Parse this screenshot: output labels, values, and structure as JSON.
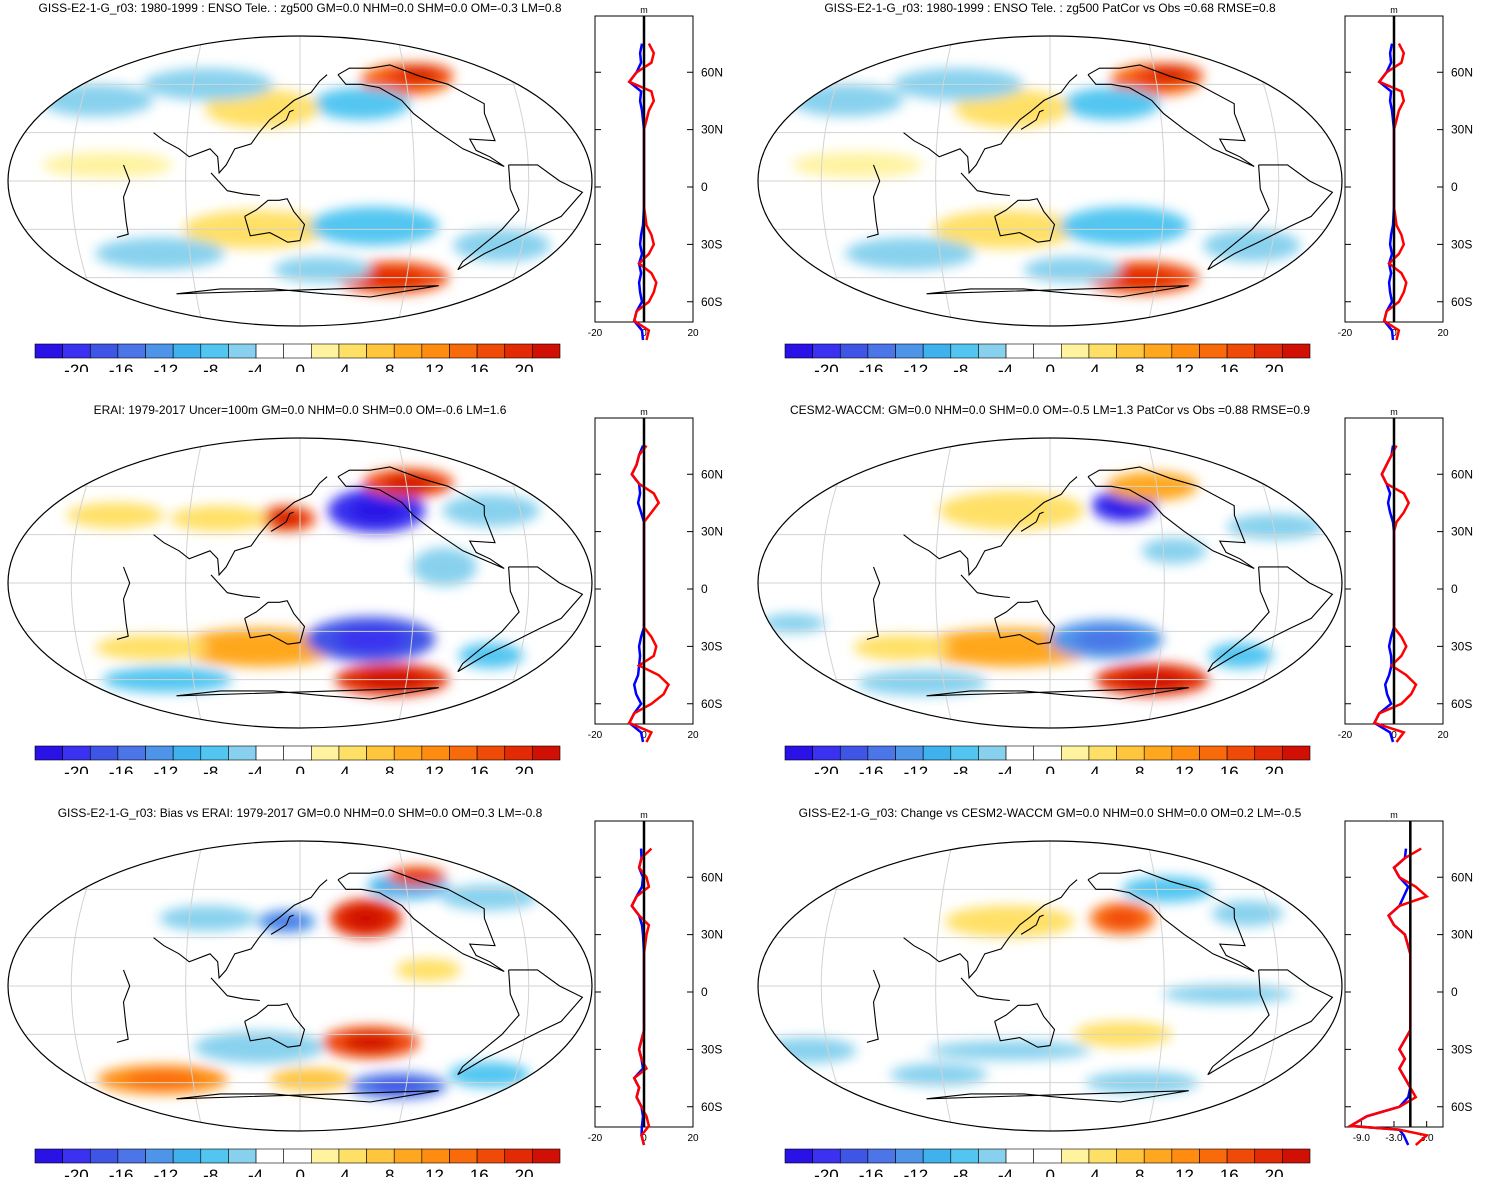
{
  "colors": {
    "scale": [
      "#2a12e6",
      "#3a32f0",
      "#3f55e6",
      "#4c76e8",
      "#4e95ea",
      "#3fb2ee",
      "#52c6f1",
      "#88d1ee",
      "#ffffff",
      "#ffffff",
      "#fff3a0",
      "#ffe066",
      "#ffc53d",
      "#ffa71f",
      "#ff8c10",
      "#f96a0a",
      "#f04a08",
      "#e22a05",
      "#d00f05"
    ],
    "line_positive": "#ff0000",
    "line_negative": "#0000ff",
    "line_mean": "#000000",
    "coast": "#000000",
    "grid": "#d3d3d3"
  },
  "colorbar_ticks": [
    "-20",
    "-16",
    "-12",
    "-8",
    "-4",
    "0",
    "4",
    "8",
    "12",
    "16",
    "20"
  ],
  "profile_unit": "m",
  "profile_lat_ticks": [
    "60N",
    "30N",
    "0",
    "30S",
    "60S"
  ],
  "panels": [
    {
      "id": "p1",
      "title": "GISS-E2-1-G_r03: 1980-1999 : ENSO Tele. : zg500 GM=0.0 NHM=0.0 SHM=0.0 OM=-0.3 LM=0.8",
      "profile_x_ticks": [
        "-20",
        "0",
        "20"
      ],
      "profile_range": [
        -20,
        20
      ],
      "blobs": [
        {
          "lon": -100,
          "lat": 63,
          "rx": 28,
          "ry": 10,
          "v": 14
        },
        {
          "lon": -80,
          "lat": 66,
          "rx": 22,
          "ry": 7,
          "v": 18
        },
        {
          "lon": -160,
          "lat": 48,
          "rx": 30,
          "ry": 10,
          "v": -8
        },
        {
          "lon": 120,
          "lat": 45,
          "rx": 35,
          "ry": 12,
          "v": 6
        },
        {
          "lon": -20,
          "lat": 50,
          "rx": 35,
          "ry": 10,
          "v": -6
        },
        {
          "lon": 60,
          "lat": 60,
          "rx": 40,
          "ry": 10,
          "v": -5
        },
        {
          "lon": 30,
          "lat": 10,
          "rx": 40,
          "ry": 8,
          "v": 3
        },
        {
          "lon": 120,
          "lat": -30,
          "rx": 45,
          "ry": 12,
          "v": 6
        },
        {
          "lon": -160,
          "lat": -28,
          "rx": 40,
          "ry": 12,
          "v": -8
        },
        {
          "lon": -120,
          "lat": -60,
          "rx": 35,
          "ry": 10,
          "v": 16
        },
        {
          "lon": -60,
          "lat": -40,
          "rx": 30,
          "ry": 10,
          "v": -6
        },
        {
          "lon": 40,
          "lat": -45,
          "rx": 40,
          "ry": 10,
          "v": -5
        },
        {
          "lon": 170,
          "lat": -55,
          "rx": 30,
          "ry": 8,
          "v": -6
        }
      ],
      "profile": [
        [
          75,
          2
        ],
        [
          70,
          4
        ],
        [
          65,
          3
        ],
        [
          60,
          -3
        ],
        [
          55,
          -6
        ],
        [
          50,
          3
        ],
        [
          45,
          4
        ],
        [
          40,
          2
        ],
        [
          35,
          1
        ],
        [
          30,
          0
        ],
        [
          20,
          0
        ],
        [
          10,
          0
        ],
        [
          0,
          0
        ],
        [
          -10,
          0
        ],
        [
          -20,
          1
        ],
        [
          -25,
          3
        ],
        [
          -30,
          4
        ],
        [
          -35,
          2
        ],
        [
          -40,
          -2
        ],
        [
          -45,
          3
        ],
        [
          -50,
          5
        ],
        [
          -55,
          4
        ],
        [
          -60,
          2
        ],
        [
          -65,
          -3
        ],
        [
          -70,
          -4
        ],
        [
          -75,
          2
        ],
        [
          -80,
          1
        ]
      ]
    },
    {
      "id": "p2",
      "title": "GISS-E2-1-G_r03: 1980-1999 : ENSO Tele. : zg500 PatCor vs Obs =0.68 RMSE=0.8",
      "profile_x_ticks": [
        "-20",
        "0",
        "20"
      ],
      "profile_range": [
        -20,
        20
      ],
      "blobs": [
        {
          "lon": -100,
          "lat": 63,
          "rx": 28,
          "ry": 10,
          "v": 14
        },
        {
          "lon": -80,
          "lat": 66,
          "rx": 22,
          "ry": 7,
          "v": 18
        },
        {
          "lon": -160,
          "lat": 48,
          "rx": 30,
          "ry": 10,
          "v": -8
        },
        {
          "lon": 120,
          "lat": 45,
          "rx": 35,
          "ry": 12,
          "v": 6
        },
        {
          "lon": -20,
          "lat": 50,
          "rx": 35,
          "ry": 10,
          "v": -6
        },
        {
          "lon": 60,
          "lat": 60,
          "rx": 40,
          "ry": 10,
          "v": -5
        },
        {
          "lon": 30,
          "lat": 10,
          "rx": 40,
          "ry": 8,
          "v": 3
        },
        {
          "lon": 120,
          "lat": -30,
          "rx": 45,
          "ry": 12,
          "v": 6
        },
        {
          "lon": -160,
          "lat": -28,
          "rx": 40,
          "ry": 12,
          "v": -8
        },
        {
          "lon": -120,
          "lat": -60,
          "rx": 35,
          "ry": 10,
          "v": 16
        },
        {
          "lon": -60,
          "lat": -40,
          "rx": 30,
          "ry": 10,
          "v": -6
        },
        {
          "lon": 40,
          "lat": -45,
          "rx": 40,
          "ry": 10,
          "v": -5
        },
        {
          "lon": 170,
          "lat": -55,
          "rx": 30,
          "ry": 8,
          "v": -6
        }
      ],
      "profile": [
        [
          75,
          2
        ],
        [
          70,
          4
        ],
        [
          65,
          3
        ],
        [
          60,
          -3
        ],
        [
          55,
          -6
        ],
        [
          50,
          3
        ],
        [
          45,
          4
        ],
        [
          40,
          2
        ],
        [
          35,
          1
        ],
        [
          30,
          0
        ],
        [
          20,
          0
        ],
        [
          10,
          0
        ],
        [
          0,
          0
        ],
        [
          -10,
          0
        ],
        [
          -20,
          1
        ],
        [
          -25,
          3
        ],
        [
          -30,
          4
        ],
        [
          -35,
          2
        ],
        [
          -40,
          -2
        ],
        [
          -45,
          3
        ],
        [
          -50,
          5
        ],
        [
          -55,
          4
        ],
        [
          -60,
          2
        ],
        [
          -65,
          -3
        ],
        [
          -70,
          -4
        ],
        [
          -75,
          2
        ],
        [
          -80,
          1
        ]
      ]
    },
    {
      "id": "p3",
      "title": "ERAI: 1979-2017 Uncer=100m GM=0.0 NHM=0.0 SHM=0.0 OM=-0.6 LM=1.6",
      "profile_x_ticks": [
        "-20",
        "0",
        "20"
      ],
      "profile_range": [
        -20,
        20
      ],
      "blobs": [
        {
          "lon": -150,
          "lat": 45,
          "rx": 30,
          "ry": 14,
          "v": -20
        },
        {
          "lon": -100,
          "lat": 62,
          "rx": 28,
          "ry": 9,
          "v": 18
        },
        {
          "lon": 140,
          "lat": 40,
          "rx": 18,
          "ry": 8,
          "v": 18
        },
        {
          "lon": 90,
          "lat": 40,
          "rx": 30,
          "ry": 8,
          "v": 6
        },
        {
          "lon": 10,
          "lat": 42,
          "rx": 30,
          "ry": 8,
          "v": 6
        },
        {
          "lon": -60,
          "lat": 45,
          "rx": 30,
          "ry": 10,
          "v": -6
        },
        {
          "lon": -120,
          "lat": 10,
          "rx": 20,
          "ry": 12,
          "v": -5
        },
        {
          "lon": 120,
          "lat": -40,
          "rx": 50,
          "ry": 12,
          "v": 10
        },
        {
          "lon": -160,
          "lat": -35,
          "rx": 40,
          "ry": 14,
          "v": -16
        },
        {
          "lon": -120,
          "lat": -60,
          "rx": 35,
          "ry": 10,
          "v": 20
        },
        {
          "lon": -60,
          "lat": -45,
          "rx": 20,
          "ry": 8,
          "v": -8
        },
        {
          "lon": 40,
          "lat": -40,
          "rx": 35,
          "ry": 8,
          "v": 4
        },
        {
          "lon": 20,
          "lat": -60,
          "rx": 40,
          "ry": 8,
          "v": -8
        }
      ],
      "profile": [
        [
          75,
          1
        ],
        [
          70,
          -2
        ],
        [
          65,
          -3
        ],
        [
          60,
          -5
        ],
        [
          55,
          -2
        ],
        [
          50,
          4
        ],
        [
          45,
          6
        ],
        [
          40,
          3
        ],
        [
          35,
          0
        ],
        [
          30,
          0
        ],
        [
          20,
          0
        ],
        [
          10,
          0
        ],
        [
          0,
          0
        ],
        [
          -10,
          0
        ],
        [
          -20,
          0
        ],
        [
          -25,
          3
        ],
        [
          -30,
          5
        ],
        [
          -35,
          4
        ],
        [
          -40,
          -2
        ],
        [
          -45,
          6
        ],
        [
          -50,
          10
        ],
        [
          -55,
          8
        ],
        [
          -60,
          3
        ],
        [
          -65,
          -4
        ],
        [
          -70,
          -6
        ],
        [
          -75,
          3
        ],
        [
          -80,
          1
        ]
      ]
    },
    {
      "id": "p4",
      "title": "CESM2-WACCM: GM=0.0 NHM=0.0 SHM=0.0 OM=-0.5 LM=1.3 PatCor vs Obs =0.88 RMSE=0.9",
      "profile_x_ticks": [
        "-20",
        "0",
        "20"
      ],
      "profile_range": [
        -20,
        20
      ],
      "blobs": [
        {
          "lon": -150,
          "lat": 48,
          "rx": 20,
          "ry": 10,
          "v": -20
        },
        {
          "lon": -110,
          "lat": 60,
          "rx": 28,
          "ry": 9,
          "v": 10
        },
        {
          "lon": 120,
          "lat": 45,
          "rx": 45,
          "ry": 12,
          "v": 6
        },
        {
          "lon": -50,
          "lat": 35,
          "rx": 30,
          "ry": 8,
          "v": -5
        },
        {
          "lon": -130,
          "lat": 20,
          "rx": 20,
          "ry": 8,
          "v": -4
        },
        {
          "lon": 120,
          "lat": -40,
          "rx": 55,
          "ry": 12,
          "v": 9
        },
        {
          "lon": -170,
          "lat": -35,
          "rx": 35,
          "ry": 12,
          "v": -12
        },
        {
          "lon": -110,
          "lat": -60,
          "rx": 35,
          "ry": 10,
          "v": 20
        },
        {
          "lon": -60,
          "lat": -45,
          "rx": 20,
          "ry": 8,
          "v": -7
        },
        {
          "lon": -20,
          "lat": -25,
          "rx": 20,
          "ry": 6,
          "v": -4
        },
        {
          "lon": 40,
          "lat": -40,
          "rx": 30,
          "ry": 8,
          "v": 4
        },
        {
          "lon": 20,
          "lat": -62,
          "rx": 40,
          "ry": 8,
          "v": -6
        }
      ],
      "profile": [
        [
          75,
          1
        ],
        [
          70,
          -1
        ],
        [
          65,
          -3
        ],
        [
          60,
          -5
        ],
        [
          55,
          -3
        ],
        [
          50,
          4
        ],
        [
          45,
          6
        ],
        [
          40,
          4
        ],
        [
          35,
          1
        ],
        [
          30,
          0
        ],
        [
          20,
          0
        ],
        [
          10,
          0
        ],
        [
          0,
          0
        ],
        [
          -10,
          0
        ],
        [
          -20,
          0
        ],
        [
          -25,
          3
        ],
        [
          -30,
          5
        ],
        [
          -35,
          3
        ],
        [
          -40,
          -1
        ],
        [
          -45,
          5
        ],
        [
          -50,
          9
        ],
        [
          -55,
          7
        ],
        [
          -60,
          3
        ],
        [
          -65,
          -6
        ],
        [
          -70,
          -8
        ],
        [
          -75,
          4
        ],
        [
          -80,
          1
        ]
      ]
    },
    {
      "id": "p5",
      "title": "GISS-E2-1-G_r03: Bias vs ERAI: 1979-2017 GM=0.0 NHM=0.0 SHM=0.0 OM=0.3 LM=-0.8",
      "profile_x_ticks": [
        "-20",
        "0",
        "20"
      ],
      "profile_range": [
        -20,
        20
      ],
      "blobs": [
        {
          "lon": -160,
          "lat": 42,
          "rx": 22,
          "ry": 12,
          "v": 20
        },
        {
          "lon": -100,
          "lat": 62,
          "rx": 25,
          "ry": 8,
          "v": -10
        },
        {
          "lon": -75,
          "lat": 68,
          "rx": 18,
          "ry": 6,
          "v": 16
        },
        {
          "lon": 140,
          "lat": 40,
          "rx": 18,
          "ry": 7,
          "v": -12
        },
        {
          "lon": 80,
          "lat": 42,
          "rx": 30,
          "ry": 8,
          "v": -5
        },
        {
          "lon": -40,
          "lat": 55,
          "rx": 30,
          "ry": 8,
          "v": -5
        },
        {
          "lon": -130,
          "lat": 10,
          "rx": 20,
          "ry": 7,
          "v": 5
        },
        {
          "lon": -160,
          "lat": -35,
          "rx": 30,
          "ry": 10,
          "v": 18
        },
        {
          "lon": 120,
          "lat": -38,
          "rx": 40,
          "ry": 10,
          "v": -5
        },
        {
          "lon": -110,
          "lat": -62,
          "rx": 30,
          "ry": 8,
          "v": -14
        },
        {
          "lon": -40,
          "lat": -55,
          "rx": 25,
          "ry": 8,
          "v": -8
        },
        {
          "lon": 20,
          "lat": -58,
          "rx": 40,
          "ry": 9,
          "v": 12
        },
        {
          "lon": 160,
          "lat": -58,
          "rx": 25,
          "ry": 7,
          "v": 8
        }
      ],
      "profile": [
        [
          75,
          3
        ],
        [
          70,
          -1
        ],
        [
          65,
          -2
        ],
        [
          60,
          1
        ],
        [
          55,
          2
        ],
        [
          50,
          -3
        ],
        [
          45,
          -5
        ],
        [
          40,
          -2
        ],
        [
          35,
          2
        ],
        [
          30,
          1
        ],
        [
          20,
          0
        ],
        [
          10,
          0
        ],
        [
          0,
          0
        ],
        [
          -10,
          0
        ],
        [
          -20,
          0
        ],
        [
          -25,
          -1
        ],
        [
          -30,
          -2
        ],
        [
          -35,
          -1
        ],
        [
          -40,
          1
        ],
        [
          -45,
          -4
        ],
        [
          -50,
          -2
        ],
        [
          -55,
          -3
        ],
        [
          -60,
          -1
        ],
        [
          -65,
          1
        ],
        [
          -70,
          2
        ],
        [
          -75,
          -1
        ],
        [
          -80,
          0
        ]
      ]
    },
    {
      "id": "p6",
      "title": "GISS-E2-1-G_r03: Change vs CESM2-WACCM GM=0.0 NHM=0.0 SHM=0.0 OM=0.2 LM=-0.5",
      "profile_x_ticks": [
        "-9.0",
        "-3.0",
        "3.0"
      ],
      "profile_range": [
        -12,
        6
      ],
      "blobs": [
        {
          "lon": -155,
          "lat": 42,
          "rx": 20,
          "ry": 10,
          "v": 14
        },
        {
          "lon": -95,
          "lat": 60,
          "rx": 28,
          "ry": 8,
          "v": -8
        },
        {
          "lon": -55,
          "lat": 45,
          "rx": 22,
          "ry": 8,
          "v": -6
        },
        {
          "lon": 120,
          "lat": 40,
          "rx": 40,
          "ry": 10,
          "v": 4
        },
        {
          "lon": -100,
          "lat": -5,
          "rx": 40,
          "ry": 6,
          "v": -4
        },
        {
          "lon": -160,
          "lat": -30,
          "rx": 30,
          "ry": 8,
          "v": 6
        },
        {
          "lon": -30,
          "lat": -40,
          "rx": 30,
          "ry": 8,
          "v": -5
        },
        {
          "lon": 120,
          "lat": -40,
          "rx": 50,
          "ry": 6,
          "v": -4
        },
        {
          "lon": -120,
          "lat": -60,
          "rx": 35,
          "ry": 7,
          "v": -6
        },
        {
          "lon": 50,
          "lat": -55,
          "rx": 30,
          "ry": 7,
          "v": -5
        }
      ],
      "profile": [
        [
          75,
          2
        ],
        [
          70,
          -1
        ],
        [
          65,
          -3
        ],
        [
          60,
          -2
        ],
        [
          55,
          1
        ],
        [
          50,
          3
        ],
        [
          45,
          -2
        ],
        [
          40,
          -4
        ],
        [
          35,
          -3
        ],
        [
          30,
          -1
        ],
        [
          20,
          0
        ],
        [
          10,
          0
        ],
        [
          0,
          0
        ],
        [
          -10,
          0
        ],
        [
          -20,
          0
        ],
        [
          -25,
          -1
        ],
        [
          -30,
          -2
        ],
        [
          -35,
          -1
        ],
        [
          -40,
          -2
        ],
        [
          -45,
          -1
        ],
        [
          -50,
          0
        ],
        [
          -55,
          1
        ],
        [
          -60,
          -2
        ],
        [
          -65,
          -8
        ],
        [
          -70,
          -11
        ],
        [
          -72,
          -2
        ],
        [
          -75,
          3
        ],
        [
          -80,
          1
        ]
      ]
    }
  ]
}
